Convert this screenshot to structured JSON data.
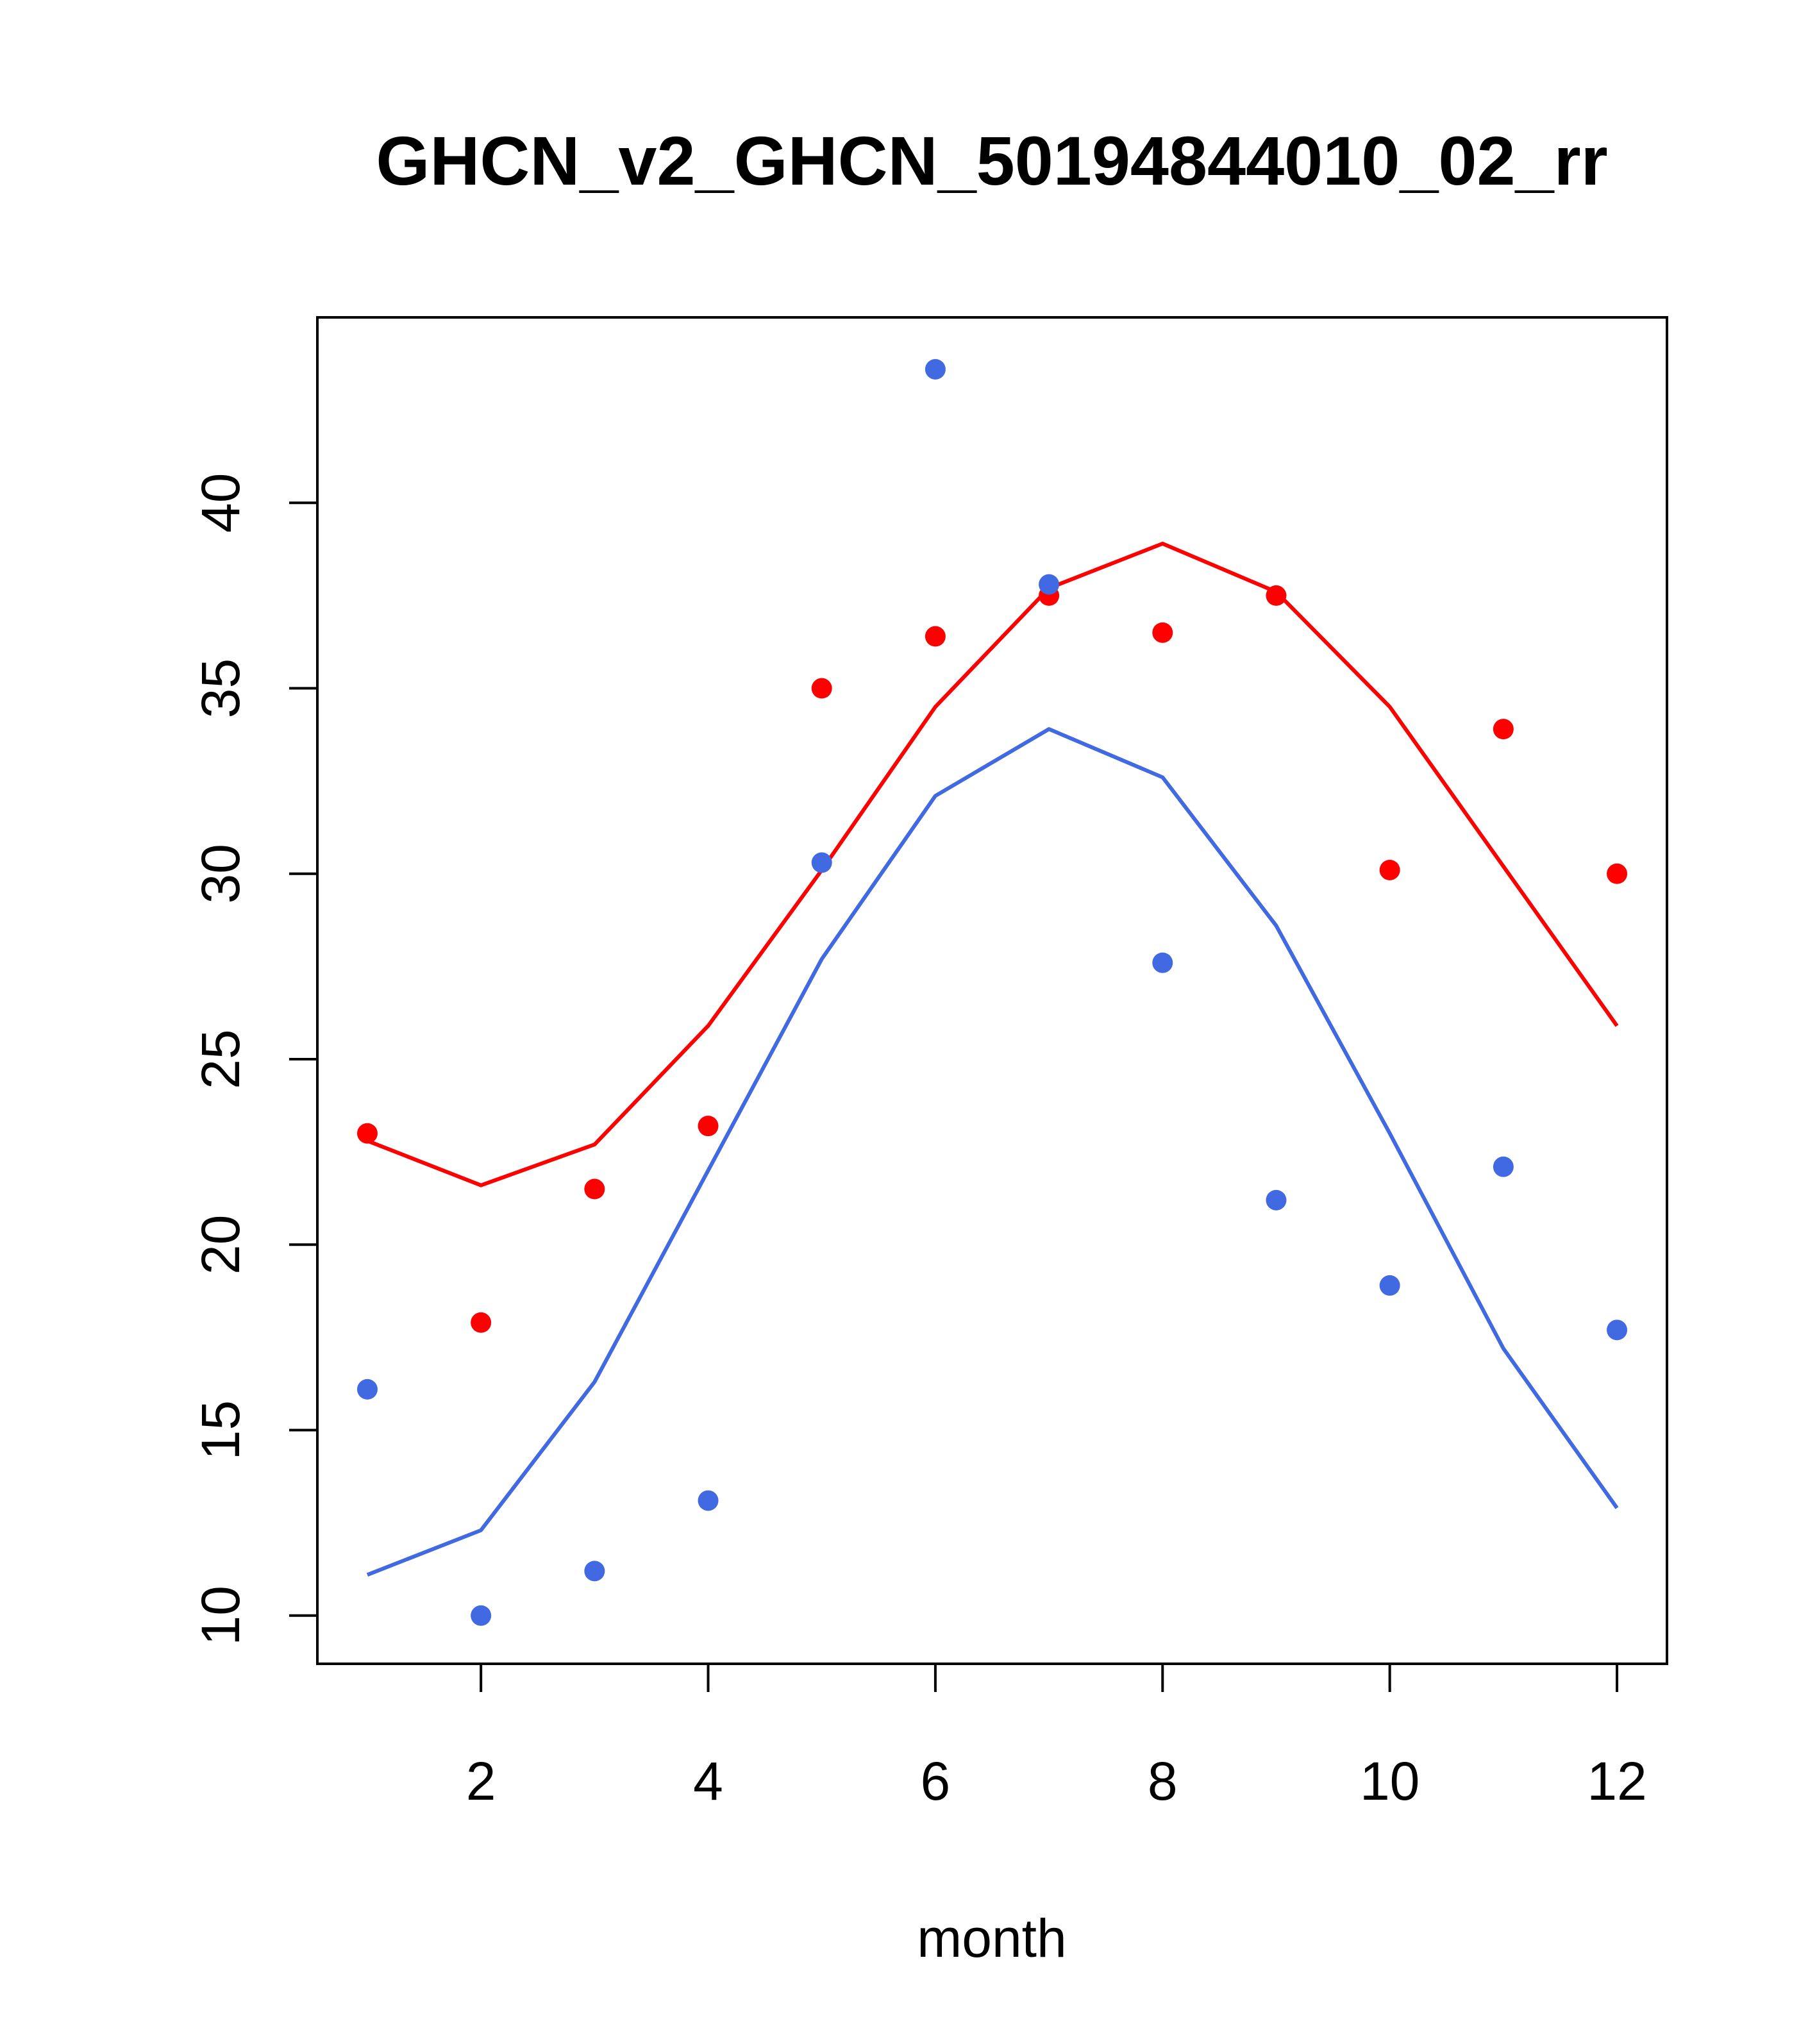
{
  "chart_data": {
    "type": "line",
    "title": "GHCN_v2_GHCN_50194844010_02_rr",
    "xlabel": "month",
    "ylabel": "",
    "xlim": [
      0.56,
      12.44
    ],
    "ylim": [
      8.7,
      45.0
    ],
    "x_ticks": [
      2,
      4,
      6,
      8,
      10,
      12
    ],
    "y_ticks": [
      10,
      15,
      20,
      25,
      30,
      35,
      40
    ],
    "grid": false,
    "legend": "none",
    "x": [
      1,
      2,
      3,
      4,
      5,
      6,
      7,
      8,
      9,
      10,
      11,
      12
    ],
    "series": [
      {
        "color": "#ff0000",
        "line": [
          22.8,
          21.6,
          22.7,
          25.9,
          30.1,
          34.5,
          37.7,
          38.9,
          37.6,
          34.5,
          30.2,
          25.9
        ],
        "points": [
          23.0,
          17.9,
          21.5,
          23.2,
          35.0,
          36.4,
          37.5,
          36.5,
          37.5,
          30.1,
          33.9,
          30.0
        ]
      },
      {
        "color": "#4169e1",
        "line": [
          11.1,
          12.3,
          16.3,
          22.0,
          27.7,
          32.1,
          33.9,
          32.6,
          28.6,
          23.0,
          17.2,
          12.9
        ],
        "points": [
          16.1,
          10.0,
          11.2,
          13.1,
          30.3,
          43.6,
          37.8,
          27.6,
          21.2,
          18.9,
          22.1,
          17.7
        ]
      }
    ]
  }
}
